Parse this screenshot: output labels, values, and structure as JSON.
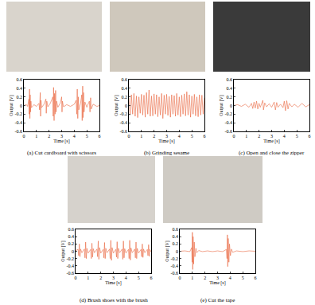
{
  "chart_data": [
    {
      "type": "line",
      "title": "(a) Cut cardboard with scissors",
      "xlabel": "Time [s]",
      "ylabel": "Output [V]",
      "color": "#e9663f",
      "grid": false,
      "xlim": [
        0,
        6
      ],
      "ylim": [
        -0.6,
        0.6
      ],
      "xticks": [
        0,
        1,
        2,
        3,
        4,
        5,
        6
      ],
      "yticks": [
        -0.6,
        -0.4,
        -0.2,
        0,
        0.2,
        0.4,
        0.6
      ],
      "x": [
        0,
        0.2,
        0.3,
        0.4,
        0.42,
        0.45,
        0.48,
        0.5,
        0.53,
        0.56,
        0.6,
        0.8,
        1.0,
        1.2,
        1.25,
        1.3,
        1.33,
        1.36,
        1.4,
        1.6,
        1.75,
        1.78,
        1.82,
        1.9,
        2.1,
        2.3,
        2.33,
        2.36,
        2.4,
        2.44,
        2.48,
        2.52,
        2.56,
        2.6,
        2.7,
        2.9,
        3.0,
        3.03,
        3.06,
        3.15,
        3.4,
        3.7,
        4.0,
        4.15,
        4.2,
        4.24,
        4.28,
        4.32,
        4.36,
        4.5,
        4.6,
        4.63,
        4.67,
        4.7,
        4.74,
        4.78,
        4.85,
        5.0,
        5.2,
        5.25,
        5.3,
        5.35,
        5.5,
        5.8,
        6.0
      ],
      "values": [
        0,
        0.02,
        -0.02,
        0.15,
        -0.2,
        0.38,
        -0.3,
        0.25,
        -0.15,
        0.1,
        -0.05,
        0.02,
        -0.02,
        0.05,
        -0.1,
        0.3,
        -0.25,
        0.12,
        -0.05,
        0.03,
        0.15,
        -0.18,
        0.1,
        -0.03,
        0.05,
        0.2,
        -0.25,
        0.42,
        -0.35,
        0.28,
        -0.2,
        0.35,
        -0.15,
        0.1,
        -0.04,
        0.06,
        0.2,
        -0.15,
        0.1,
        -0.03,
        0.02,
        -0.02,
        0.03,
        0.12,
        -0.2,
        0.38,
        -0.3,
        0.2,
        -0.1,
        0.05,
        0.25,
        -0.35,
        0.45,
        -0.28,
        0.3,
        -0.15,
        0.08,
        -0.04,
        0.1,
        -0.15,
        0.18,
        -0.08,
        0.03,
        -0.02,
        0
      ]
    },
    {
      "type": "line",
      "title": "(b) Grinding sesame",
      "xlabel": "Time [s]",
      "ylabel": "Output [V]",
      "color": "#e9663f",
      "grid": false,
      "xlim": [
        0,
        6
      ],
      "ylim": [
        -0.6,
        0.6
      ],
      "xticks": [
        0,
        1,
        2,
        3,
        4,
        5,
        6
      ],
      "yticks": [
        -0.6,
        -0.4,
        -0.2,
        0,
        0.2,
        0.4,
        0.6
      ],
      "x": [
        0,
        0.1,
        0.2,
        0.3,
        0.4,
        0.5,
        0.6,
        0.7,
        0.8,
        0.9,
        1.0,
        1.1,
        1.2,
        1.3,
        1.4,
        1.5,
        1.6,
        1.7,
        1.8,
        1.9,
        2.0,
        2.1,
        2.2,
        2.3,
        2.4,
        2.5,
        2.6,
        2.7,
        2.8,
        2.9,
        3.0,
        3.1,
        3.2,
        3.3,
        3.4,
        3.5,
        3.6,
        3.7,
        3.8,
        3.9,
        4.0,
        4.1,
        4.2,
        4.3,
        4.4,
        4.5,
        4.6,
        4.7,
        4.8,
        4.9,
        5.0,
        5.1,
        5.2,
        5.3,
        5.4,
        5.5,
        5.6,
        5.7,
        5.8,
        5.9,
        6.0
      ],
      "values": [
        0.18,
        -0.22,
        0.25,
        -0.2,
        0.28,
        -0.25,
        0.22,
        -0.28,
        0.2,
        -0.18,
        0.26,
        -0.22,
        0.24,
        -0.27,
        0.3,
        -0.2,
        0.36,
        -0.25,
        0.22,
        -0.24,
        0.27,
        -0.2,
        0.25,
        -0.26,
        0.2,
        -0.22,
        0.28,
        -0.3,
        0.24,
        -0.2,
        0.26,
        -0.23,
        0.21,
        -0.27,
        0.25,
        -0.2,
        0.23,
        -0.25,
        0.28,
        -0.22,
        0.2,
        -0.26,
        0.24,
        -0.2,
        0.27,
        -0.24,
        0.32,
        -0.22,
        0.25,
        -0.27,
        0.22,
        -0.2,
        0.26,
        -0.24,
        0.2,
        -0.26,
        0.25,
        -0.22,
        0.24,
        -0.2,
        0.18
      ]
    },
    {
      "type": "line",
      "title": "(c) Open and close the zipper",
      "xlabel": "Time [s]",
      "ylabel": "Output [V]",
      "color": "#e9663f",
      "grid": false,
      "xlim": [
        0,
        6
      ],
      "ylim": [
        -0.6,
        0.6
      ],
      "xticks": [
        0,
        1,
        2,
        3,
        4,
        5,
        6
      ],
      "yticks": [
        -0.6,
        -0.4,
        -0.2,
        0,
        0.2,
        0.4,
        0.6
      ],
      "x": [
        0,
        0.3,
        0.6,
        0.9,
        1.2,
        1.4,
        1.5,
        1.6,
        1.7,
        1.8,
        1.9,
        2.0,
        2.1,
        2.3,
        2.35,
        2.45,
        2.6,
        2.8,
        3.0,
        3.2,
        3.3,
        3.4,
        3.5,
        3.7,
        3.9,
        4.0,
        4.1,
        4.2,
        4.3,
        4.4,
        4.6,
        4.8,
        5.1,
        5.4,
        5.7,
        6.0
      ],
      "values": [
        0,
        0.02,
        -0.02,
        0.03,
        -0.04,
        0.05,
        -0.07,
        0.08,
        -0.06,
        0.1,
        -0.08,
        0.05,
        -0.04,
        0.12,
        -0.1,
        0.06,
        -0.03,
        0.04,
        -0.04,
        0.08,
        -0.1,
        0.07,
        -0.04,
        0.03,
        -0.05,
        0.1,
        -0.12,
        0.11,
        -0.08,
        0.05,
        -0.03,
        0.03,
        -0.04,
        0.05,
        -0.03,
        0.02
      ]
    },
    {
      "type": "line",
      "title": "(d) Brush shoes with the brush",
      "xlabel": "Time [s]",
      "ylabel": "Output [V]",
      "color": "#e9663f",
      "grid": false,
      "xlim": [
        0,
        6
      ],
      "ylim": [
        -0.6,
        0.6
      ],
      "xticks": [
        0,
        1,
        2,
        3,
        4,
        5,
        6
      ],
      "yticks": [
        -0.6,
        -0.4,
        -0.2,
        0,
        0.2,
        0.4,
        0.6
      ],
      "x": [
        0,
        0.2,
        0.25,
        0.3,
        0.35,
        0.4,
        0.5,
        0.7,
        0.75,
        0.8,
        0.85,
        0.9,
        1.0,
        1.2,
        1.25,
        1.3,
        1.35,
        1.4,
        1.5,
        1.7,
        1.75,
        1.8,
        1.85,
        1.9,
        2.0,
        2.2,
        2.25,
        2.3,
        2.35,
        2.4,
        2.5,
        2.7,
        2.75,
        2.8,
        2.85,
        2.9,
        3.0,
        3.2,
        3.25,
        3.3,
        3.35,
        3.4,
        3.5,
        3.7,
        3.75,
        3.8,
        3.85,
        3.9,
        4.0,
        4.2,
        4.25,
        4.3,
        4.35,
        4.4,
        4.5,
        4.7,
        4.75,
        4.8,
        4.85,
        4.9,
        5.0,
        5.2,
        5.25,
        5.3,
        5.35,
        5.4,
        5.5,
        5.7,
        5.75,
        5.8,
        5.85,
        5.9,
        6.0
      ],
      "values": [
        0.02,
        0.05,
        -0.12,
        0.2,
        -0.15,
        0.06,
        -0.04,
        0.06,
        -0.18,
        0.25,
        -0.2,
        0.08,
        -0.05,
        0.05,
        -0.2,
        0.22,
        -0.16,
        0.07,
        -0.04,
        0.06,
        -0.15,
        0.28,
        -0.22,
        0.1,
        -0.05,
        0.05,
        -0.18,
        0.24,
        -0.2,
        0.08,
        -0.04,
        0.06,
        -0.2,
        0.3,
        -0.25,
        0.1,
        -0.05,
        0.05,
        -0.16,
        0.26,
        -0.2,
        0.08,
        -0.04,
        0.06,
        -0.22,
        0.28,
        -0.18,
        0.07,
        -0.05,
        0.05,
        -0.2,
        0.3,
        -0.24,
        0.09,
        -0.04,
        0.06,
        -0.18,
        0.25,
        -0.2,
        0.08,
        -0.05,
        0.05,
        -0.15,
        0.2,
        -0.17,
        0.06,
        -0.04,
        0.05,
        -0.12,
        0.18,
        -0.14,
        0.05,
        -0.02
      ]
    },
    {
      "type": "line",
      "title": "(e) Cut the tape",
      "xlabel": "Time [s]",
      "ylabel": "Output [V]",
      "color": "#e9663f",
      "grid": false,
      "xlim": [
        0,
        6
      ],
      "ylim": [
        -0.6,
        0.6
      ],
      "xticks": [
        0,
        1,
        2,
        3,
        4,
        5,
        6
      ],
      "yticks": [
        -0.6,
        -0.4,
        -0.2,
        0,
        0.2,
        0.4,
        0.6
      ],
      "x": [
        0,
        0.4,
        0.8,
        0.95,
        0.98,
        1.0,
        1.03,
        1.06,
        1.1,
        1.15,
        1.2,
        1.28,
        1.35,
        1.5,
        1.8,
        2.2,
        2.6,
        3.0,
        3.4,
        3.7,
        3.75,
        3.78,
        3.81,
        3.85,
        3.9,
        3.95,
        4.02,
        4.1,
        4.2,
        4.5,
        5.0,
        5.5,
        6.0
      ],
      "values": [
        0,
        0.01,
        -0.01,
        0.1,
        -0.3,
        0.52,
        -0.5,
        0.4,
        -0.35,
        0.25,
        -0.15,
        0.08,
        -0.04,
        0.02,
        -0.01,
        0.01,
        -0.01,
        0.01,
        -0.01,
        0.05,
        -0.2,
        0.45,
        -0.42,
        0.35,
        -0.3,
        0.2,
        -0.12,
        0.06,
        -0.03,
        0.01,
        -0.01,
        0.01,
        0
      ]
    }
  ]
}
